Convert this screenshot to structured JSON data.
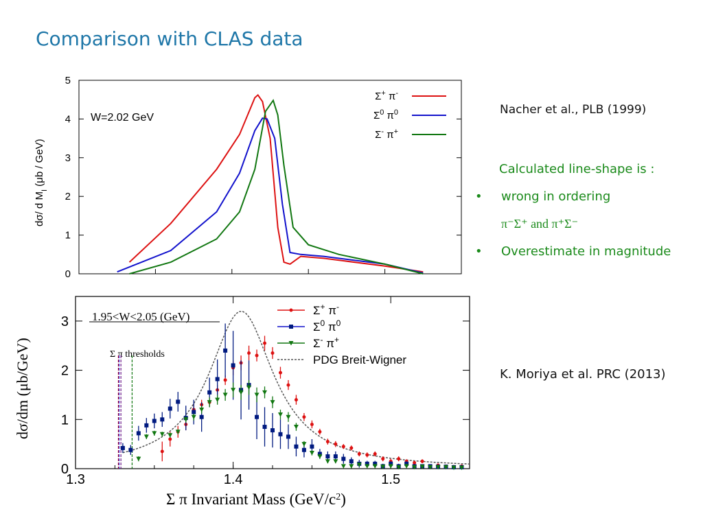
{
  "title": "Comparison with CLAS data",
  "top_ref": "Nacher et al., PLB (1999)",
  "bottom_ref": "K. Moriya et al. PRC  (2013)",
  "notes": {
    "heading": "Calculated line-shape is :",
    "bullet_char": "•",
    "item1": "wrong  in  ordering",
    "item1_sub": "π⁻Σ⁺  and  π⁺Σ⁻",
    "item2": "Overestimate in magnitude"
  },
  "colors": {
    "title": "#1f77a8",
    "green": "#1a8a1a",
    "red": "#dd1111",
    "blue": "#1111cc",
    "dkgreen": "#117711",
    "navy": "#001a80"
  },
  "chart_data": [
    {
      "type": "line",
      "annotation": "W=2.02 GeV",
      "ylabel": "dσ/ d M",
      "ylabel_sub": "I",
      "ylabel_units": " (μb / GeV)",
      "xlim": [
        1.3,
        1.55
      ],
      "ylim": [
        0,
        5
      ],
      "yticks": [
        "0",
        "1",
        "2",
        "3",
        "4",
        "5"
      ],
      "series": [
        {
          "name_main": "Σ",
          "name_sup1": "+",
          "name_mid": " π",
          "name_sup2": "-",
          "color": "#dd1111",
          "x": [
            1.333,
            1.36,
            1.39,
            1.405,
            1.415,
            1.417,
            1.42,
            1.425,
            1.43,
            1.434,
            1.438,
            1.445,
            1.46,
            1.5,
            1.525
          ],
          "y": [
            0.3,
            1.3,
            2.7,
            3.6,
            4.55,
            4.62,
            4.45,
            3.5,
            1.2,
            0.3,
            0.25,
            0.45,
            0.4,
            0.2,
            0.05
          ]
        },
        {
          "name_main": "Σ",
          "name_sup1": "0",
          "name_mid": " π",
          "name_sup2": "0",
          "color": "#1111cc",
          "x": [
            1.325,
            1.36,
            1.39,
            1.405,
            1.415,
            1.42,
            1.423,
            1.428,
            1.433,
            1.438,
            1.445,
            1.46,
            1.5,
            1.525
          ],
          "y": [
            0.05,
            0.6,
            1.6,
            2.6,
            3.7,
            4.02,
            4.0,
            3.5,
            1.8,
            0.55,
            0.5,
            0.45,
            0.25,
            0.02
          ]
        },
        {
          "name_main": "Σ",
          "name_sup1": "-",
          "name_mid": " π",
          "name_sup2": "+",
          "color": "#117711",
          "x": [
            1.333,
            1.36,
            1.39,
            1.405,
            1.415,
            1.422,
            1.427,
            1.43,
            1.434,
            1.44,
            1.45,
            1.47,
            1.5,
            1.525
          ],
          "y": [
            0.0,
            0.3,
            0.9,
            1.6,
            2.7,
            4.2,
            4.48,
            4.1,
            2.8,
            1.2,
            0.75,
            0.5,
            0.25,
            0.0
          ]
        }
      ]
    },
    {
      "type": "scatter",
      "annotation": "1.95<W<2.05 (GeV)",
      "threshold_label": "Σ π thresholds",
      "xlabel": "Σ π Invariant Mass (GeV/c",
      "xlabel_sup": "2",
      "xlabel_end": ")",
      "ylabel": "dσ/dm (μb/GeV)",
      "xlim": [
        1.3,
        1.55
      ],
      "ylim": [
        0,
        3.5
      ],
      "xticks": [
        {
          "value": 1.3,
          "label": "1.3"
        },
        {
          "value": 1.4,
          "label": "1.4"
        },
        {
          "value": 1.5,
          "label": "1.5"
        }
      ],
      "yticks": [
        "0",
        "1",
        "2",
        "3"
      ],
      "thresholds": [
        {
          "x": 1.3272,
          "color": "#dd1111"
        },
        {
          "x": 1.3276,
          "color": "#1111cc"
        },
        {
          "x": 1.3288,
          "color": "#6a1a8a"
        },
        {
          "x": 1.3359,
          "color": "#117711"
        }
      ],
      "legend": [
        {
          "main": "Σ",
          "sup1": "+",
          "mid": " π",
          "sup2": "-",
          "color": "#dd1111"
        },
        {
          "main": "Σ",
          "sup1": "0",
          "mid": " π",
          "sup2": "0",
          "color": "#1111cc"
        },
        {
          "main": "Σ",
          "sup1": "-",
          "mid": " π",
          "sup2": "+",
          "color": "#117711"
        },
        {
          "main": "PDG Breit-Wigner",
          "sup1": "",
          "mid": "",
          "sup2": "",
          "color": "#555555"
        }
      ],
      "bw": {
        "mass": 1.4051,
        "width": 0.0505,
        "peak": 3.2,
        "x_from": 1.33,
        "x_to": 1.55
      },
      "series": [
        {
          "name": "Σ+ π-",
          "color": "#dd1111",
          "x": [
            1.355,
            1.36,
            1.365,
            1.37,
            1.375,
            1.38,
            1.385,
            1.39,
            1.395,
            1.4,
            1.405,
            1.41,
            1.415,
            1.42,
            1.425,
            1.43,
            1.435,
            1.44,
            1.445,
            1.45,
            1.455,
            1.46,
            1.465,
            1.47,
            1.475,
            1.48,
            1.485,
            1.49,
            1.495,
            1.5,
            1.505,
            1.51,
            1.515,
            1.52,
            1.525,
            1.53,
            1.535,
            1.54,
            1.545
          ],
          "y": [
            0.35,
            0.6,
            0.75,
            0.9,
            1.2,
            1.3,
            1.35,
            1.6,
            1.8,
            2.05,
            2.15,
            2.35,
            2.3,
            2.55,
            2.35,
            1.95,
            1.7,
            1.4,
            1.05,
            0.9,
            0.75,
            0.55,
            0.5,
            0.45,
            0.42,
            0.3,
            0.28,
            0.3,
            0.2,
            0.15,
            0.2,
            0.15,
            0.12,
            0.15,
            0.05,
            0.07,
            0.05,
            0.04,
            0.05
          ],
          "err": [
            0.2,
            0.15,
            0.12,
            0.12,
            0.12,
            0.1,
            0.1,
            0.1,
            0.1,
            0.15,
            0.15,
            0.15,
            0.12,
            0.15,
            0.12,
            0.12,
            0.1,
            0.1,
            0.08,
            0.08,
            0.06,
            0.06,
            0.06,
            0.05,
            0.05,
            0.05,
            0.05,
            0.05,
            0.05,
            0.05,
            0.05,
            0.04,
            0.04,
            0.04,
            0.04,
            0.03,
            0.03,
            0.03,
            0.03
          ]
        },
        {
          "name": "Σ0 π0",
          "color": "#001a80",
          "x": [
            1.33,
            1.335,
            1.34,
            1.345,
            1.35,
            1.355,
            1.36,
            1.365,
            1.37,
            1.375,
            1.38,
            1.385,
            1.39,
            1.395,
            1.4,
            1.405,
            1.41,
            1.415,
            1.42,
            1.425,
            1.43,
            1.435,
            1.44,
            1.445,
            1.45,
            1.455,
            1.46,
            1.465,
            1.47,
            1.475,
            1.48,
            1.485,
            1.49,
            1.495,
            1.5,
            1.505,
            1.51,
            1.515,
            1.52,
            1.525,
            1.53,
            1.535,
            1.54,
            1.545
          ],
          "y": [
            0.42,
            0.38,
            0.72,
            0.88,
            0.97,
            1.0,
            1.22,
            1.36,
            1.03,
            1.15,
            1.05,
            1.55,
            1.82,
            2.4,
            2.1,
            1.6,
            1.7,
            1.05,
            0.85,
            0.78,
            0.7,
            0.65,
            0.45,
            0.38,
            0.45,
            0.3,
            0.25,
            0.25,
            0.2,
            0.15,
            0.1,
            0.1,
            0.1,
            0.05,
            0.1,
            0.05,
            0.1,
            0.05,
            0.05,
            0.05,
            0.04,
            0.04,
            0.03,
            0.03
          ],
          "err": [
            0.1,
            0.1,
            0.15,
            0.15,
            0.15,
            0.15,
            0.2,
            0.2,
            0.25,
            0.25,
            0.3,
            0.3,
            0.4,
            0.55,
            0.7,
            0.6,
            0.5,
            0.45,
            0.4,
            0.35,
            0.3,
            0.25,
            0.2,
            0.15,
            0.15,
            0.1,
            0.1,
            0.1,
            0.1,
            0.08,
            0.08,
            0.06,
            0.06,
            0.05,
            0.05,
            0.05,
            0.05,
            0.04,
            0.04,
            0.04,
            0.03,
            0.03,
            0.03,
            0.03
          ]
        },
        {
          "name": "Σ- π+",
          "color": "#117711",
          "x": [
            1.34,
            1.345,
            1.35,
            1.355,
            1.36,
            1.365,
            1.37,
            1.375,
            1.38,
            1.385,
            1.39,
            1.395,
            1.4,
            1.405,
            1.41,
            1.415,
            1.42,
            1.425,
            1.43,
            1.435,
            1.44,
            1.445,
            1.45,
            1.455,
            1.46,
            1.465,
            1.47,
            1.475,
            1.48,
            1.485,
            1.49,
            1.495,
            1.5,
            1.505,
            1.51,
            1.515,
            1.52,
            1.525,
            1.53,
            1.535,
            1.54,
            1.545
          ],
          "y": [
            0.2,
            0.65,
            0.72,
            0.7,
            0.68,
            0.75,
            1.0,
            1.05,
            1.2,
            1.35,
            1.4,
            1.5,
            1.6,
            1.55,
            1.65,
            1.5,
            1.55,
            1.35,
            1.1,
            1.05,
            0.85,
            0.5,
            0.32,
            0.25,
            0.15,
            0.15,
            0.05,
            0.05,
            0.08,
            0.05,
            0.05,
            0.04,
            0.05,
            0.03,
            0.05,
            0.03,
            0.04,
            0.03,
            0.03,
            0.03,
            0.02,
            0.02
          ],
          "err": [
            0.05,
            0.05,
            0.05,
            0.05,
            0.05,
            0.05,
            0.06,
            0.07,
            0.08,
            0.1,
            0.1,
            0.12,
            0.15,
            0.15,
            0.15,
            0.15,
            0.12,
            0.12,
            0.1,
            0.1,
            0.08,
            0.06,
            0.05,
            0.05,
            0.04,
            0.04,
            0.03,
            0.03,
            0.03,
            0.03,
            0.03,
            0.03,
            0.03,
            0.02,
            0.02,
            0.02,
            0.02,
            0.02,
            0.02,
            0.02,
            0.02,
            0.02
          ]
        }
      ]
    }
  ]
}
